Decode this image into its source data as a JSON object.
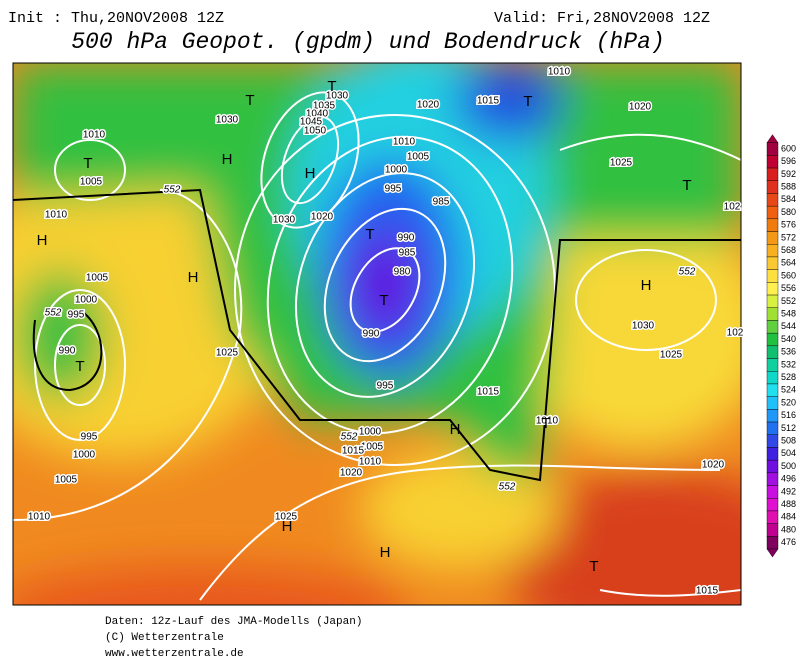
{
  "header": {
    "init": "Init : Thu,20NOV2008 12Z",
    "valid": "Valid: Fri,28NOV2008 12Z",
    "title": "500 hPa Geopot. (gpdm) und Bodendruck (hPa)"
  },
  "isobar_labels": [
    1010,
    1005,
    1010,
    1005,
    1000,
    995,
    990,
    995,
    1000,
    1005,
    1010,
    1025,
    1025,
    1030,
    1035,
    1040,
    1045,
    1050,
    1030,
    1030,
    1020,
    1020,
    1015,
    1010,
    1010,
    1005,
    1000,
    995,
    985,
    990,
    985,
    980,
    990,
    995,
    1000,
    1005,
    1010,
    1015,
    1020,
    1015,
    1010,
    1020,
    1025,
    1030,
    1025,
    1020,
    1015,
    102,
    102
  ],
  "contour_552_labels": [
    552,
    552,
    552,
    552,
    552
  ],
  "pressure_centers": [
    "T",
    "T",
    "H",
    "H",
    "T",
    "T",
    "T",
    "H",
    "H",
    "T",
    "T",
    "H",
    "T",
    "H",
    "T",
    "H",
    "H",
    "T"
  ],
  "colorbar": {
    "labels": [
      600,
      596,
      592,
      588,
      584,
      580,
      576,
      572,
      568,
      564,
      560,
      556,
      552,
      548,
      544,
      540,
      536,
      532,
      528,
      524,
      520,
      516,
      512,
      508,
      504,
      500,
      496,
      492,
      488,
      484,
      480,
      476
    ],
    "colors": [
      "#a00040",
      "#c00030",
      "#d81e1e",
      "#e03020",
      "#e84818",
      "#f06010",
      "#f07c10",
      "#f49818",
      "#f8b020",
      "#fac830",
      "#fce040",
      "#fff050",
      "#d8f040",
      "#a0e030",
      "#60d040",
      "#20c040",
      "#10c070",
      "#10d0a0",
      "#10d8c8",
      "#20e0f0",
      "#20c0f8",
      "#2098f8",
      "#2070f0",
      "#3048e8",
      "#4020e0",
      "#7010e0",
      "#a010e0",
      "#c810e0",
      "#e010d0",
      "#e010b0",
      "#c00090",
      "#800060"
    ]
  },
  "footer": [
    "Daten: 12z-Lauf des JMA-Modells (Japan)",
    "(C) Wetterzentrale",
    "www.wetterzentrale.de"
  ]
}
